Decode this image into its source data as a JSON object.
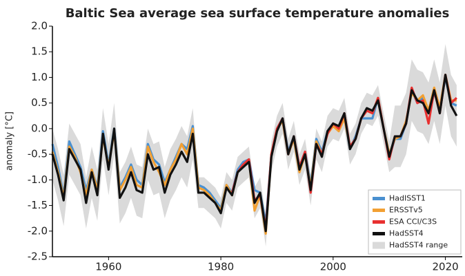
{
  "chart_data": {
    "type": "line",
    "title": "Baltic Sea average sea surface temperature anomalies",
    "ylabel": "anomaly [°C]",
    "x": [
      1950,
      1951,
      1952,
      1953,
      1954,
      1955,
      1956,
      1957,
      1958,
      1959,
      1960,
      1961,
      1962,
      1963,
      1964,
      1965,
      1966,
      1967,
      1968,
      1969,
      1970,
      1971,
      1972,
      1973,
      1974,
      1975,
      1976,
      1977,
      1978,
      1979,
      1980,
      1981,
      1982,
      1983,
      1984,
      1985,
      1986,
      1987,
      1988,
      1989,
      1990,
      1991,
      1992,
      1993,
      1994,
      1995,
      1996,
      1997,
      1998,
      1999,
      2000,
      2001,
      2002,
      2003,
      2004,
      2005,
      2006,
      2007,
      2008,
      2009,
      2010,
      2011,
      2012,
      2013,
      2014,
      2015,
      2016,
      2017,
      2018,
      2019,
      2020,
      2021,
      2022
    ],
    "xlim": [
      1950,
      2023
    ],
    "xticks": [
      1960,
      1980,
      2000,
      2020
    ],
    "ylim": [
      -2.5,
      2.0
    ],
    "yticks": [
      {
        "value": 2.0,
        "label": "2.0"
      },
      {
        "value": 1.5,
        "label": "1.5"
      },
      {
        "value": 1.0,
        "label": "1.0"
      },
      {
        "value": 0.5,
        "label": "0.5"
      },
      {
        "value": 0.0,
        "label": "0.0"
      },
      {
        "value": -0.5,
        "label": "-0.5"
      },
      {
        "value": -1.0,
        "label": "-1.0"
      },
      {
        "value": -1.5,
        "label": "-1.5"
      },
      {
        "value": -2.0,
        "label": "-2.0"
      },
      {
        "value": -2.5,
        "label": "-2.5"
      }
    ],
    "legend": "lower right",
    "range": {
      "name": "HadSST4 range",
      "color": "#dadada",
      "upper": [
        0.0,
        -0.4,
        -0.9,
        0.1,
        -0.1,
        -0.3,
        -0.95,
        -0.35,
        -0.8,
        0.4,
        -0.3,
        0.5,
        -0.85,
        -0.65,
        -0.35,
        -0.7,
        -0.75,
        0.0,
        -0.3,
        -0.25,
        -0.75,
        -0.4,
        -0.2,
        0.05,
        -0.15,
        0.4,
        -0.95,
        -0.95,
        -1.05,
        -1.15,
        -1.35,
        -0.85,
        -1.0,
        -0.55,
        -0.45,
        -0.35,
        -1.15,
        -0.95,
        -1.7,
        -0.25,
        0.25,
        0.5,
        -0.2,
        0.15,
        -0.5,
        -0.2,
        -0.9,
        0.0,
        -0.25,
        0.25,
        0.4,
        0.35,
        0.6,
        -0.1,
        0.1,
        0.5,
        0.7,
        0.65,
        0.85,
        0.3,
        -0.25,
        0.45,
        0.45,
        0.7,
        1.35,
        1.15,
        1.1,
        0.9,
        1.35,
        0.9,
        1.65,
        1.05,
        0.85
      ],
      "lower": [
        -1.0,
        -1.4,
        -1.9,
        -0.9,
        -1.1,
        -1.3,
        -1.95,
        -1.35,
        -1.8,
        -0.6,
        -1.3,
        -0.5,
        -1.85,
        -1.65,
        -1.35,
        -1.7,
        -1.75,
        -1.0,
        -1.3,
        -1.25,
        -1.75,
        -1.4,
        -1.2,
        -0.95,
        -1.15,
        -0.6,
        -1.55,
        -1.55,
        -1.65,
        -1.75,
        -1.95,
        -1.45,
        -1.6,
        -1.15,
        -1.05,
        -0.95,
        -1.75,
        -1.55,
        -2.3,
        -0.85,
        -0.35,
        -0.1,
        -0.8,
        -0.45,
        -1.1,
        -0.8,
        -1.5,
        -0.6,
        -0.85,
        -0.35,
        -0.2,
        -0.25,
        0.0,
        -0.7,
        -0.5,
        -0.1,
        0.1,
        0.05,
        0.25,
        -0.3,
        -0.85,
        -0.75,
        -0.75,
        -0.5,
        0.15,
        -0.05,
        -0.1,
        -0.3,
        0.15,
        -0.3,
        0.45,
        -0.15,
        -0.35
      ]
    },
    "series": [
      {
        "name": "HadISST1",
        "color": "#4a90d0",
        "values": [
          -0.3,
          -0.75,
          -1.3,
          -0.25,
          -0.5,
          -0.75,
          -1.2,
          -0.8,
          -1.15,
          -0.05,
          -0.7,
          0.0,
          -1.15,
          -0.95,
          -0.7,
          -1.0,
          -1.1,
          -0.3,
          -0.6,
          -0.7,
          -1.05,
          -0.8,
          -0.55,
          -0.3,
          -0.4,
          0.05,
          -1.1,
          -1.15,
          -1.25,
          -1.4,
          -1.55,
          -1.1,
          -1.25,
          -0.8,
          -0.65,
          -0.6,
          -1.2,
          -1.25,
          -1.85,
          -0.5,
          0.0,
          0.2,
          -0.45,
          -0.15,
          -0.75,
          -0.45,
          -1.1,
          -0.2,
          -0.45,
          -0.05,
          0.1,
          0.0,
          0.25,
          -0.4,
          -0.15,
          0.2,
          0.2,
          0.2,
          0.6,
          0.0,
          -0.55,
          -0.2,
          -0.2,
          0.1,
          0.75,
          0.5,
          0.6,
          0.3,
          0.7,
          0.4,
          1.0,
          0.5,
          0.45
        ]
      },
      {
        "name": "ERSSTv5",
        "color": "#f2a033",
        "values": [
          -0.45,
          -0.85,
          -1.35,
          -0.35,
          -0.55,
          -0.85,
          -1.3,
          -0.8,
          -1.2,
          -0.15,
          -0.75,
          -0.05,
          -1.2,
          -1.0,
          -0.75,
          -1.1,
          -1.15,
          -0.35,
          -0.65,
          -0.85,
          -1.1,
          -0.8,
          -0.6,
          -0.3,
          -0.5,
          0.0,
          -1.15,
          -1.2,
          -1.3,
          -1.45,
          -1.6,
          -1.1,
          -1.3,
          -0.85,
          -0.7,
          -0.6,
          -1.6,
          -1.3,
          -2.05,
          -0.5,
          0.0,
          0.15,
          -0.5,
          -0.2,
          -0.85,
          -0.5,
          -1.15,
          -0.25,
          -0.5,
          -0.1,
          0.05,
          -0.05,
          0.2,
          -0.35,
          -0.2,
          0.2,
          0.35,
          0.3,
          0.6,
          0.0,
          -0.5,
          -0.2,
          -0.15,
          0.15,
          0.7,
          0.55,
          0.65,
          0.35,
          0.8,
          0.4,
          1.05,
          0.55,
          0.55
        ]
      },
      {
        "name": "ESA CCI/C3S",
        "color": "#e83030",
        "values": [
          null,
          null,
          null,
          null,
          null,
          null,
          null,
          null,
          null,
          null,
          null,
          null,
          null,
          null,
          null,
          null,
          null,
          null,
          null,
          null,
          null,
          null,
          null,
          null,
          null,
          null,
          null,
          null,
          null,
          null,
          null,
          null,
          -1.25,
          -0.85,
          -0.7,
          -0.6,
          -1.4,
          -1.3,
          -1.95,
          -0.5,
          0.0,
          0.2,
          -0.5,
          -0.15,
          -0.75,
          -0.45,
          -1.25,
          -0.3,
          -0.5,
          -0.1,
          0.1,
          0.0,
          0.3,
          -0.35,
          -0.2,
          0.2,
          0.35,
          0.3,
          0.6,
          0.0,
          -0.6,
          -0.15,
          -0.15,
          0.1,
          0.8,
          0.5,
          0.55,
          0.1,
          0.75,
          0.3,
          1.05,
          0.5,
          0.6
        ]
      },
      {
        "name": "HadSST4",
        "color": "#111111",
        "values": [
          -0.5,
          -0.9,
          -1.4,
          -0.4,
          -0.6,
          -0.8,
          -1.45,
          -0.85,
          -1.3,
          -0.1,
          -0.8,
          0.0,
          -1.35,
          -1.15,
          -0.85,
          -1.2,
          -1.25,
          -0.5,
          -0.8,
          -0.75,
          -1.25,
          -0.9,
          -0.7,
          -0.45,
          -0.65,
          -0.1,
          -1.25,
          -1.25,
          -1.35,
          -1.45,
          -1.65,
          -1.15,
          -1.3,
          -0.85,
          -0.75,
          -0.65,
          -1.45,
          -1.25,
          -2.0,
          -0.55,
          -0.05,
          0.2,
          -0.5,
          -0.15,
          -0.8,
          -0.5,
          -1.2,
          -0.3,
          -0.55,
          -0.05,
          0.1,
          0.05,
          0.3,
          -0.4,
          -0.2,
          0.2,
          0.4,
          0.35,
          0.55,
          0.0,
          -0.55,
          -0.15,
          -0.15,
          0.1,
          0.75,
          0.55,
          0.5,
          0.3,
          0.75,
          0.3,
          1.05,
          0.45,
          0.25
        ]
      }
    ]
  }
}
